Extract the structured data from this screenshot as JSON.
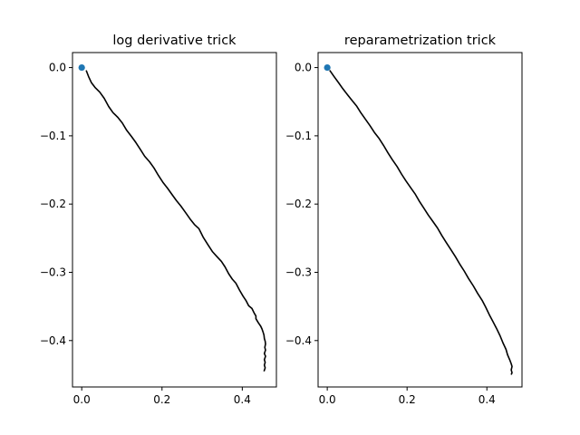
{
  "chart_data": [
    {
      "type": "line",
      "title": "log derivative trick",
      "xlabel": "",
      "ylabel": "",
      "xlim": [
        -0.023,
        0.485
      ],
      "ylim": [
        -0.468,
        0.022
      ],
      "xticks": [
        0.0,
        0.2,
        0.4
      ],
      "xtick_labels": [
        "0.0",
        "0.2",
        "0.4"
      ],
      "yticks": [
        0.0,
        -0.1,
        -0.2,
        -0.3,
        -0.4
      ],
      "ytick_labels": [
        "0.0",
        "−0.1",
        "−0.2",
        "−0.3",
        "−0.4"
      ],
      "grid": false,
      "series": [
        {
          "color": "#000000",
          "x": [
            0.011,
            0.017,
            0.024,
            0.033,
            0.045,
            0.056,
            0.067,
            0.078,
            0.09,
            0.101,
            0.112,
            0.124,
            0.135,
            0.146,
            0.157,
            0.169,
            0.18,
            0.191,
            0.202,
            0.214,
            0.225,
            0.236,
            0.247,
            0.258,
            0.27,
            0.281,
            0.292,
            0.303,
            0.315,
            0.326,
            0.337,
            0.348,
            0.357,
            0.366,
            0.375,
            0.384,
            0.393,
            0.402,
            0.409,
            0.416,
            0.424,
            0.43,
            0.434,
            0.434,
            0.44,
            0.446,
            0.449,
            0.452,
            0.454,
            0.455,
            0.457,
            0.458,
            0.456,
            0.458,
            0.455,
            0.458,
            0.455,
            0.457,
            0.455,
            0.457,
            0.454
          ],
          "y": [
            -0.004,
            -0.013,
            -0.022,
            -0.029,
            -0.036,
            -0.045,
            -0.057,
            -0.066,
            -0.073,
            -0.081,
            -0.092,
            -0.101,
            -0.11,
            -0.12,
            -0.13,
            -0.138,
            -0.147,
            -0.158,
            -0.168,
            -0.177,
            -0.186,
            -0.195,
            -0.203,
            -0.212,
            -0.222,
            -0.23,
            -0.236,
            -0.249,
            -0.26,
            -0.27,
            -0.277,
            -0.284,
            -0.292,
            -0.302,
            -0.31,
            -0.316,
            -0.326,
            -0.335,
            -0.341,
            -0.349,
            -0.353,
            -0.36,
            -0.364,
            -0.368,
            -0.374,
            -0.379,
            -0.383,
            -0.388,
            -0.392,
            -0.397,
            -0.401,
            -0.405,
            -0.41,
            -0.414,
            -0.419,
            -0.423,
            -0.428,
            -0.432,
            -0.436,
            -0.44,
            -0.445
          ]
        },
        {
          "color": "#1f77b4",
          "marker": "point",
          "x": [
            0.0
          ],
          "y": [
            0.0
          ]
        }
      ]
    },
    {
      "type": "line",
      "title": "reparametrization trick",
      "xlabel": "",
      "ylabel": "",
      "xlim": [
        -0.023,
        0.488
      ],
      "ylim": [
        -0.468,
        0.022
      ],
      "xticks": [
        0.0,
        0.2,
        0.4
      ],
      "xtick_labels": [
        "0.0",
        "0.2",
        "0.4"
      ],
      "yticks": [
        0.0,
        -0.1,
        -0.2,
        -0.3,
        -0.4
      ],
      "ytick_labels": [
        "0.0",
        "−0.1",
        "−0.2",
        "−0.3",
        "−0.4"
      ],
      "grid": false,
      "series": [
        {
          "color": "#000000",
          "x": [
            0.006,
            0.017,
            0.028,
            0.039,
            0.051,
            0.062,
            0.073,
            0.084,
            0.096,
            0.107,
            0.118,
            0.13,
            0.141,
            0.152,
            0.163,
            0.175,
            0.186,
            0.197,
            0.208,
            0.22,
            0.231,
            0.242,
            0.253,
            0.264,
            0.276,
            0.287,
            0.298,
            0.309,
            0.321,
            0.332,
            0.343,
            0.354,
            0.366,
            0.377,
            0.388,
            0.397,
            0.406,
            0.415,
            0.424,
            0.433,
            0.44,
            0.448,
            0.452,
            0.457,
            0.461,
            0.463,
            0.461,
            0.463,
            0.461
          ],
          "y": [
            -0.004,
            -0.013,
            -0.022,
            -0.031,
            -0.04,
            -0.048,
            -0.056,
            -0.066,
            -0.076,
            -0.085,
            -0.095,
            -0.104,
            -0.114,
            -0.125,
            -0.135,
            -0.145,
            -0.156,
            -0.166,
            -0.175,
            -0.185,
            -0.196,
            -0.206,
            -0.216,
            -0.225,
            -0.235,
            -0.246,
            -0.256,
            -0.266,
            -0.277,
            -0.288,
            -0.298,
            -0.309,
            -0.32,
            -0.331,
            -0.341,
            -0.351,
            -0.362,
            -0.372,
            -0.382,
            -0.393,
            -0.403,
            -0.413,
            -0.421,
            -0.428,
            -0.434,
            -0.438,
            -0.443,
            -0.447,
            -0.45
          ]
        },
        {
          "color": "#1f77b4",
          "marker": "point",
          "x": [
            0.0
          ],
          "y": [
            0.0
          ]
        }
      ]
    }
  ]
}
